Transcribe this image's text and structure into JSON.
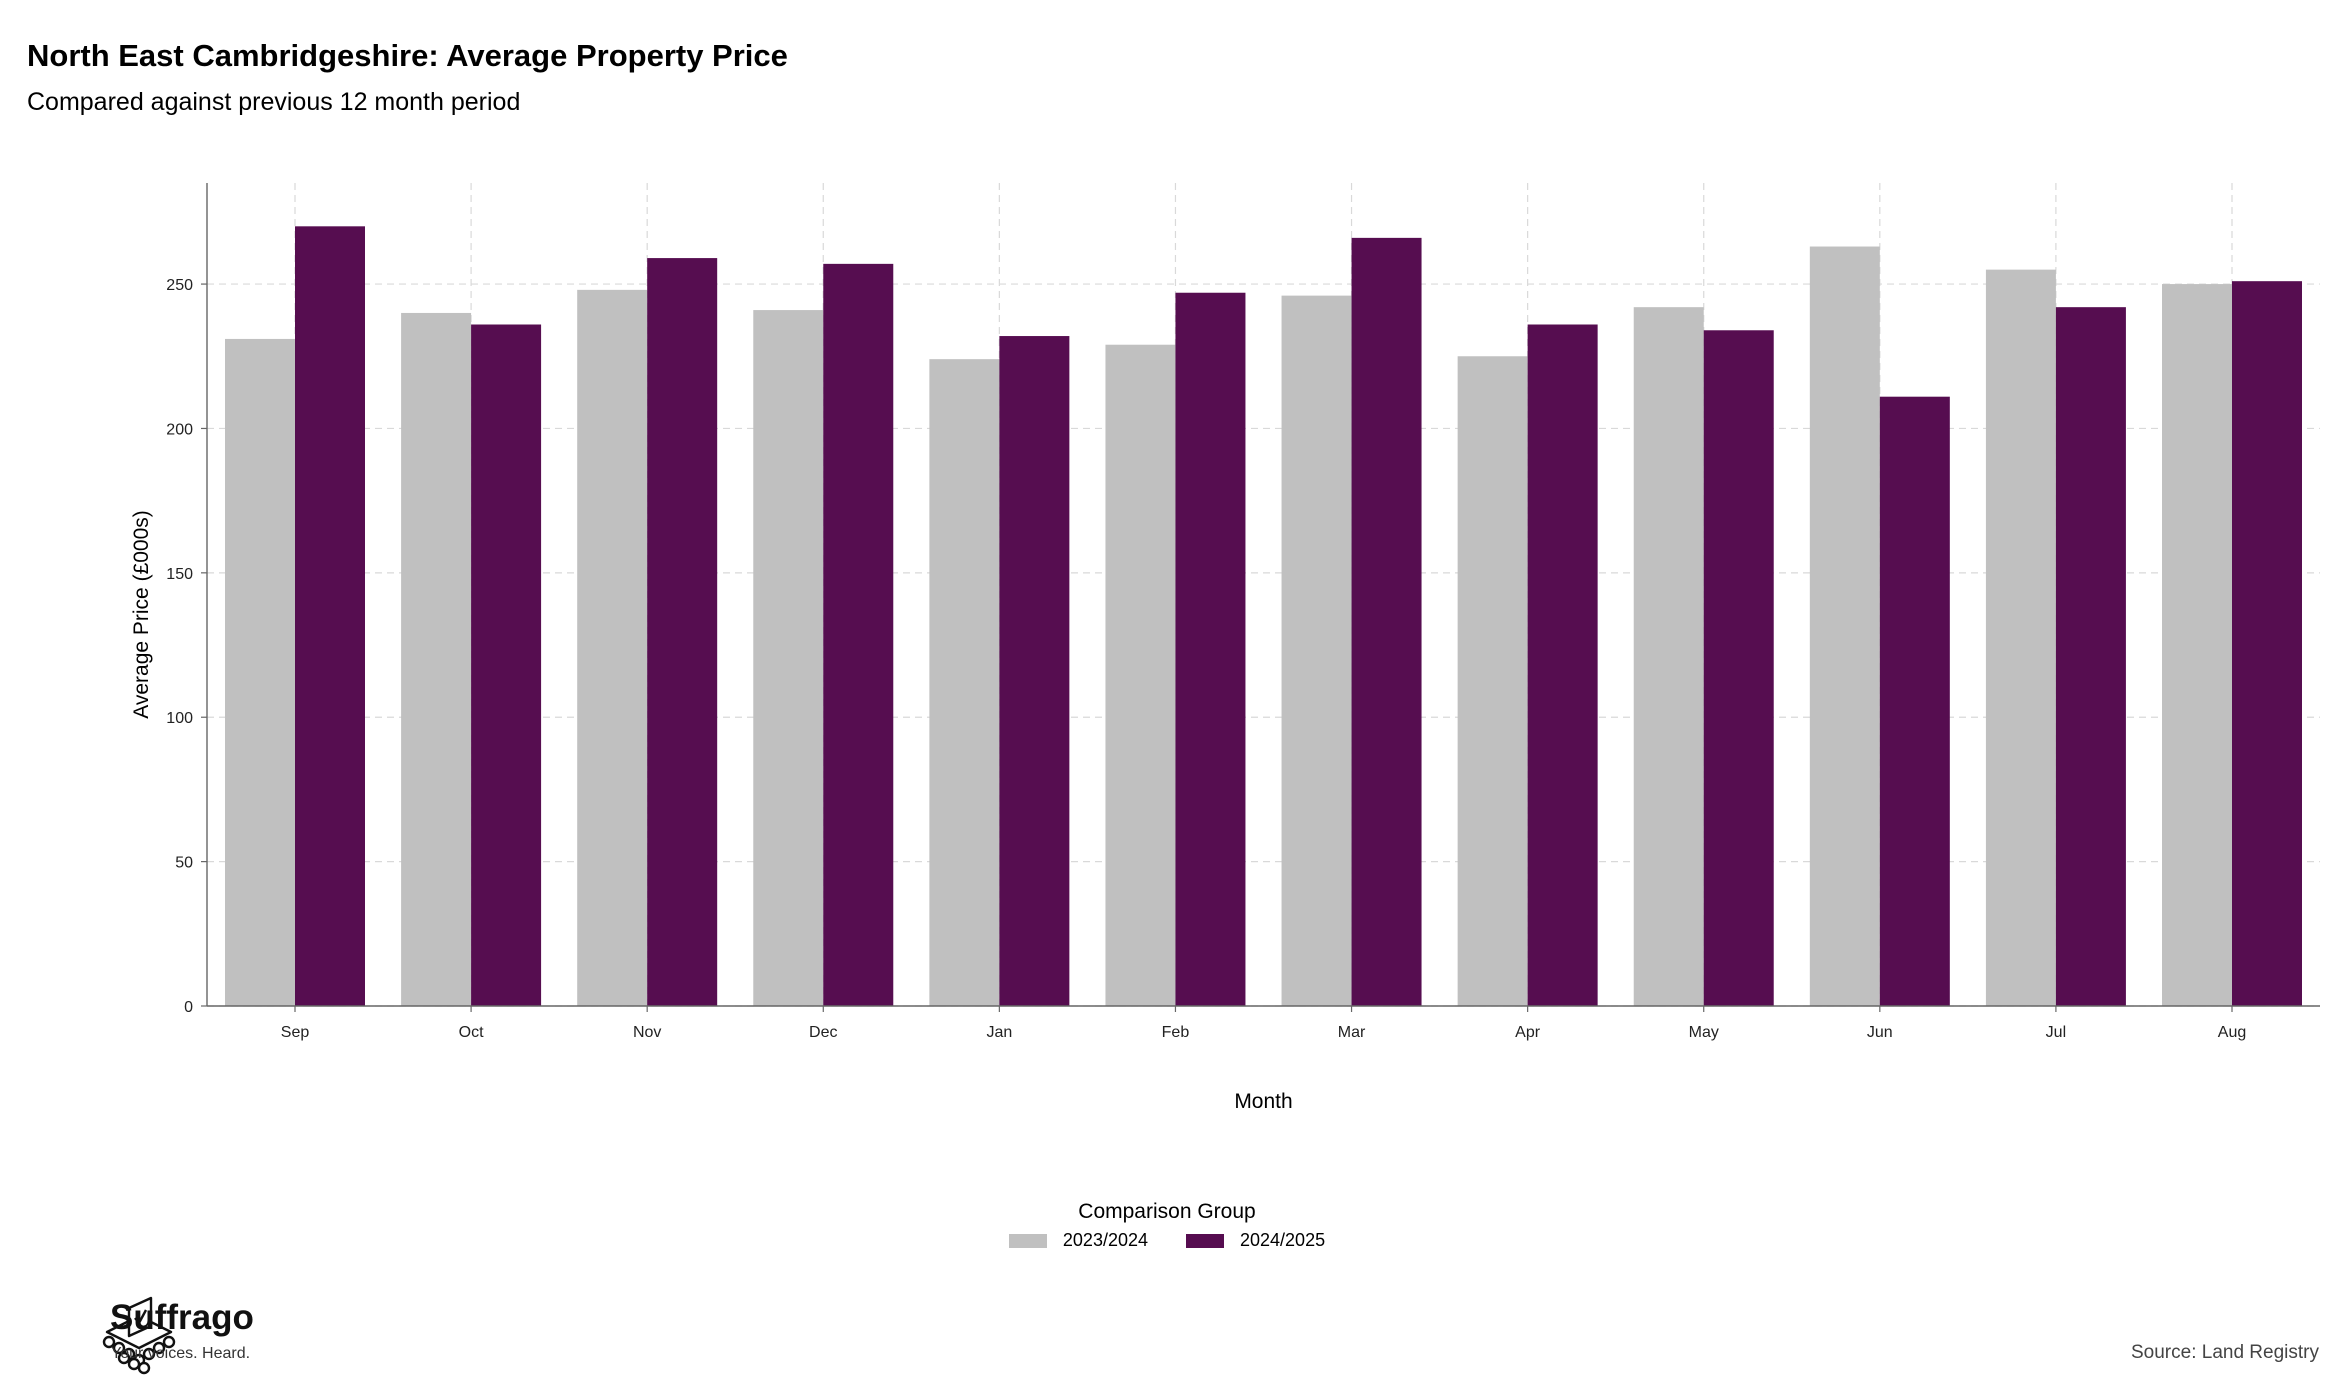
{
  "header": {
    "title": "North East Cambridgeshire: Average Property Price",
    "subtitle": "Compared against previous 12 month period"
  },
  "chart_data": {
    "type": "bar",
    "title": "North East Cambridgeshire: Average Property Price",
    "subtitle": "Compared against previous 12 month period",
    "xlabel": "Month",
    "ylabel": "Average Price (£000s)",
    "ylim": [
      0,
      285
    ],
    "yticks": [
      0,
      50,
      100,
      150,
      200,
      250
    ],
    "grid": true,
    "legend_position": "bottom",
    "categories": [
      "Sep",
      "Oct",
      "Nov",
      "Dec",
      "Jan",
      "Feb",
      "Mar",
      "Apr",
      "May",
      "Jun",
      "Jul",
      "Aug"
    ],
    "series": [
      {
        "name": "2023/2024",
        "color": "#c0c0c0",
        "values": [
          231,
          240,
          248,
          241,
          224,
          229,
          246,
          225,
          242,
          263,
          255,
          250
        ]
      },
      {
        "name": "2024/2025",
        "color": "#560d50",
        "values": [
          270,
          236,
          259,
          257,
          232,
          247,
          266,
          236,
          234,
          211,
          242,
          251
        ]
      }
    ]
  },
  "legend": {
    "title": "Comparison Group",
    "items": [
      {
        "label": "2023/2024",
        "color": "#c0c0c0"
      },
      {
        "label": "2024/2025",
        "color": "#560d50"
      }
    ]
  },
  "footer": {
    "brand": "Suffrago",
    "tagline": "Your voices. Heard.",
    "source": "Source: Land Registry"
  }
}
